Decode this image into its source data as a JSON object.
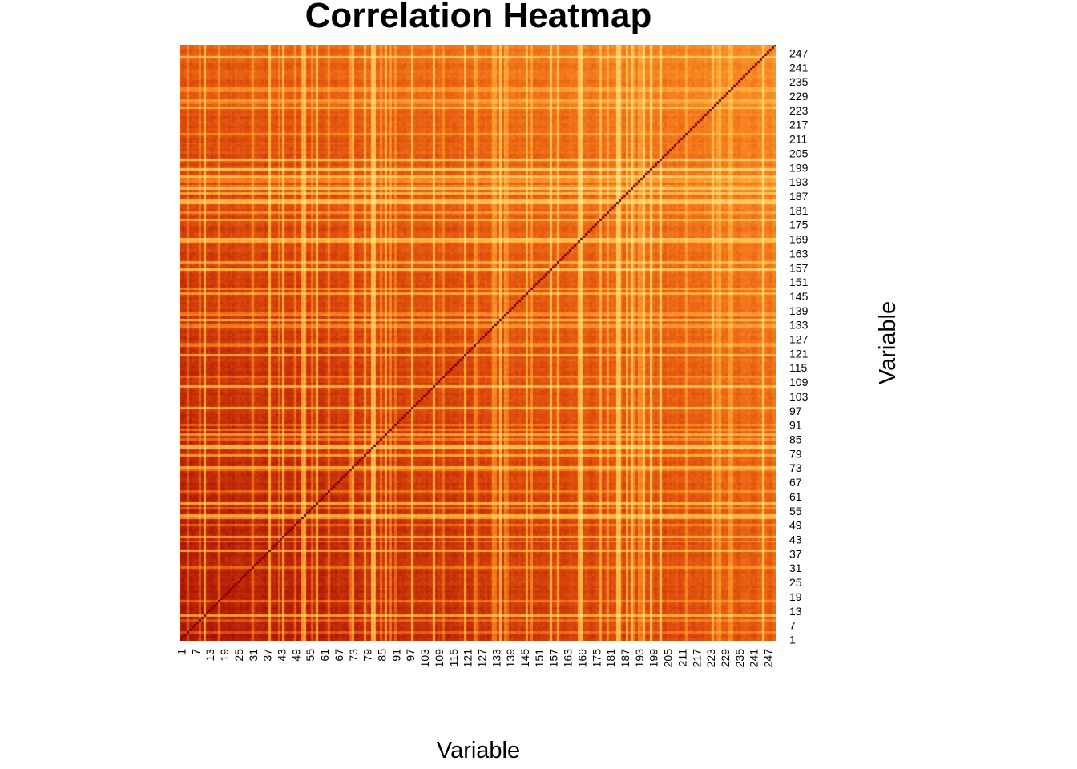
{
  "chart_data": {
    "type": "heatmap",
    "title": "Correlation Heatmap",
    "xlabel": "Variable",
    "ylabel": "Variable",
    "n_variables": 250,
    "x_ticks": [
      1,
      7,
      13,
      19,
      25,
      31,
      37,
      43,
      49,
      55,
      61,
      67,
      73,
      79,
      85,
      91,
      97,
      103,
      109,
      115,
      121,
      127,
      133,
      139,
      145,
      151,
      157,
      163,
      169,
      175,
      181,
      187,
      193,
      199,
      205,
      211,
      217,
      223,
      229,
      235,
      241,
      247
    ],
    "y_ticks": [
      1,
      7,
      13,
      19,
      25,
      31,
      37,
      43,
      49,
      55,
      61,
      67,
      73,
      79,
      85,
      91,
      97,
      103,
      109,
      115,
      121,
      127,
      133,
      139,
      145,
      151,
      157,
      163,
      169,
      175,
      181,
      187,
      193,
      199,
      205,
      211,
      217,
      223,
      229,
      235,
      241,
      247
    ],
    "value_range": [
      0,
      1
    ],
    "diagonal_value": 1,
    "colormap": [
      "#fff6c6",
      "#ffd873",
      "#fdae3c",
      "#f57d1c",
      "#dd4b0c",
      "#b21c06",
      "#7f0000"
    ],
    "legend": "none"
  }
}
